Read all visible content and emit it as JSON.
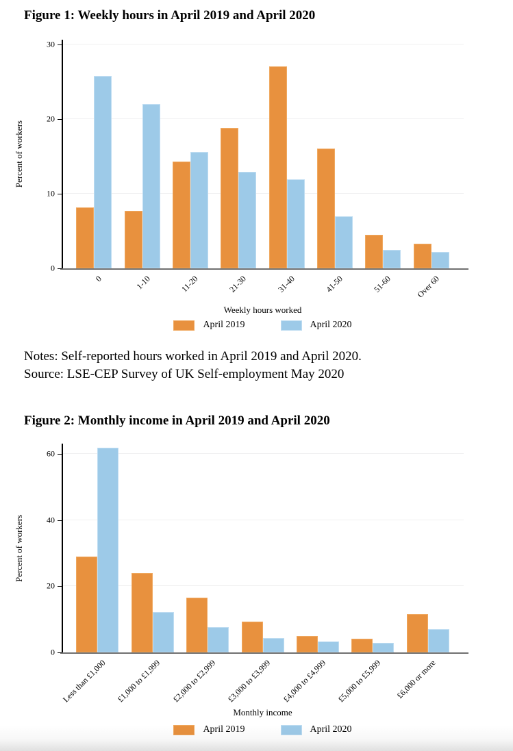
{
  "notes": {
    "line1": "Notes: Self-reported hours worked in April 2019 and April 2020.",
    "line2": "Source: LSE-CEP Survey of UK Self-employment May 2020"
  },
  "legend": {
    "series1_label": "April 2019",
    "series2_label": "April 2020"
  },
  "colors": {
    "april2019_fill": "#E8913E",
    "april2019_border": "#F0A960",
    "april2020_fill": "#9DCAE8",
    "april2020_border": "#BFDDF2",
    "gridline": "#F0F0F1",
    "y_axis": "#000000",
    "x_axis": "#707070"
  },
  "chart_data": [
    {
      "type": "bar",
      "title": "Figure 1: Weekly hours in April 2019 and April 2020",
      "categories": [
        "0",
        "1-10",
        "11-20",
        "21-30",
        "31-40",
        "41-50",
        "51-60",
        "Over 60"
      ],
      "series": [
        {
          "name": "April 2019",
          "values": [
            8.2,
            7.7,
            14.3,
            18.8,
            27.1,
            16.1,
            4.5,
            3.3
          ]
        },
        {
          "name": "April 2020",
          "values": [
            25.8,
            22.0,
            15.6,
            12.9,
            11.9,
            7.0,
            2.5,
            2.2
          ]
        }
      ],
      "xlabel": "Weekly hours worked",
      "ylabel": "Percent of workers",
      "ylim": [
        0,
        30
      ],
      "yticks": [
        0,
        10,
        20,
        30
      ],
      "grid": true,
      "legend_position": "bottom"
    },
    {
      "type": "bar",
      "title": "Figure 2: Monthly income in April 2019 and April 2020",
      "categories": [
        "Less than £1,000",
        "£1,000 to £1,999",
        "£2,000 to £2,999",
        "£3,000 to £3,999",
        "£4,000 to £4,999",
        "£5,000 to £5,999",
        "£6,000 or more"
      ],
      "series": [
        {
          "name": "April 2019",
          "values": [
            29.0,
            24.0,
            16.5,
            9.3,
            5.0,
            4.1,
            11.5
          ]
        },
        {
          "name": "April 2020",
          "values": [
            61.8,
            12.3,
            7.7,
            4.4,
            3.3,
            2.9,
            7.0
          ]
        }
      ],
      "xlabel": "Monthly income",
      "ylabel": "Percent of workers",
      "ylim": [
        0,
        60
      ],
      "yticks": [
        0,
        20,
        40,
        60
      ],
      "grid": true,
      "legend_position": "bottom"
    }
  ]
}
